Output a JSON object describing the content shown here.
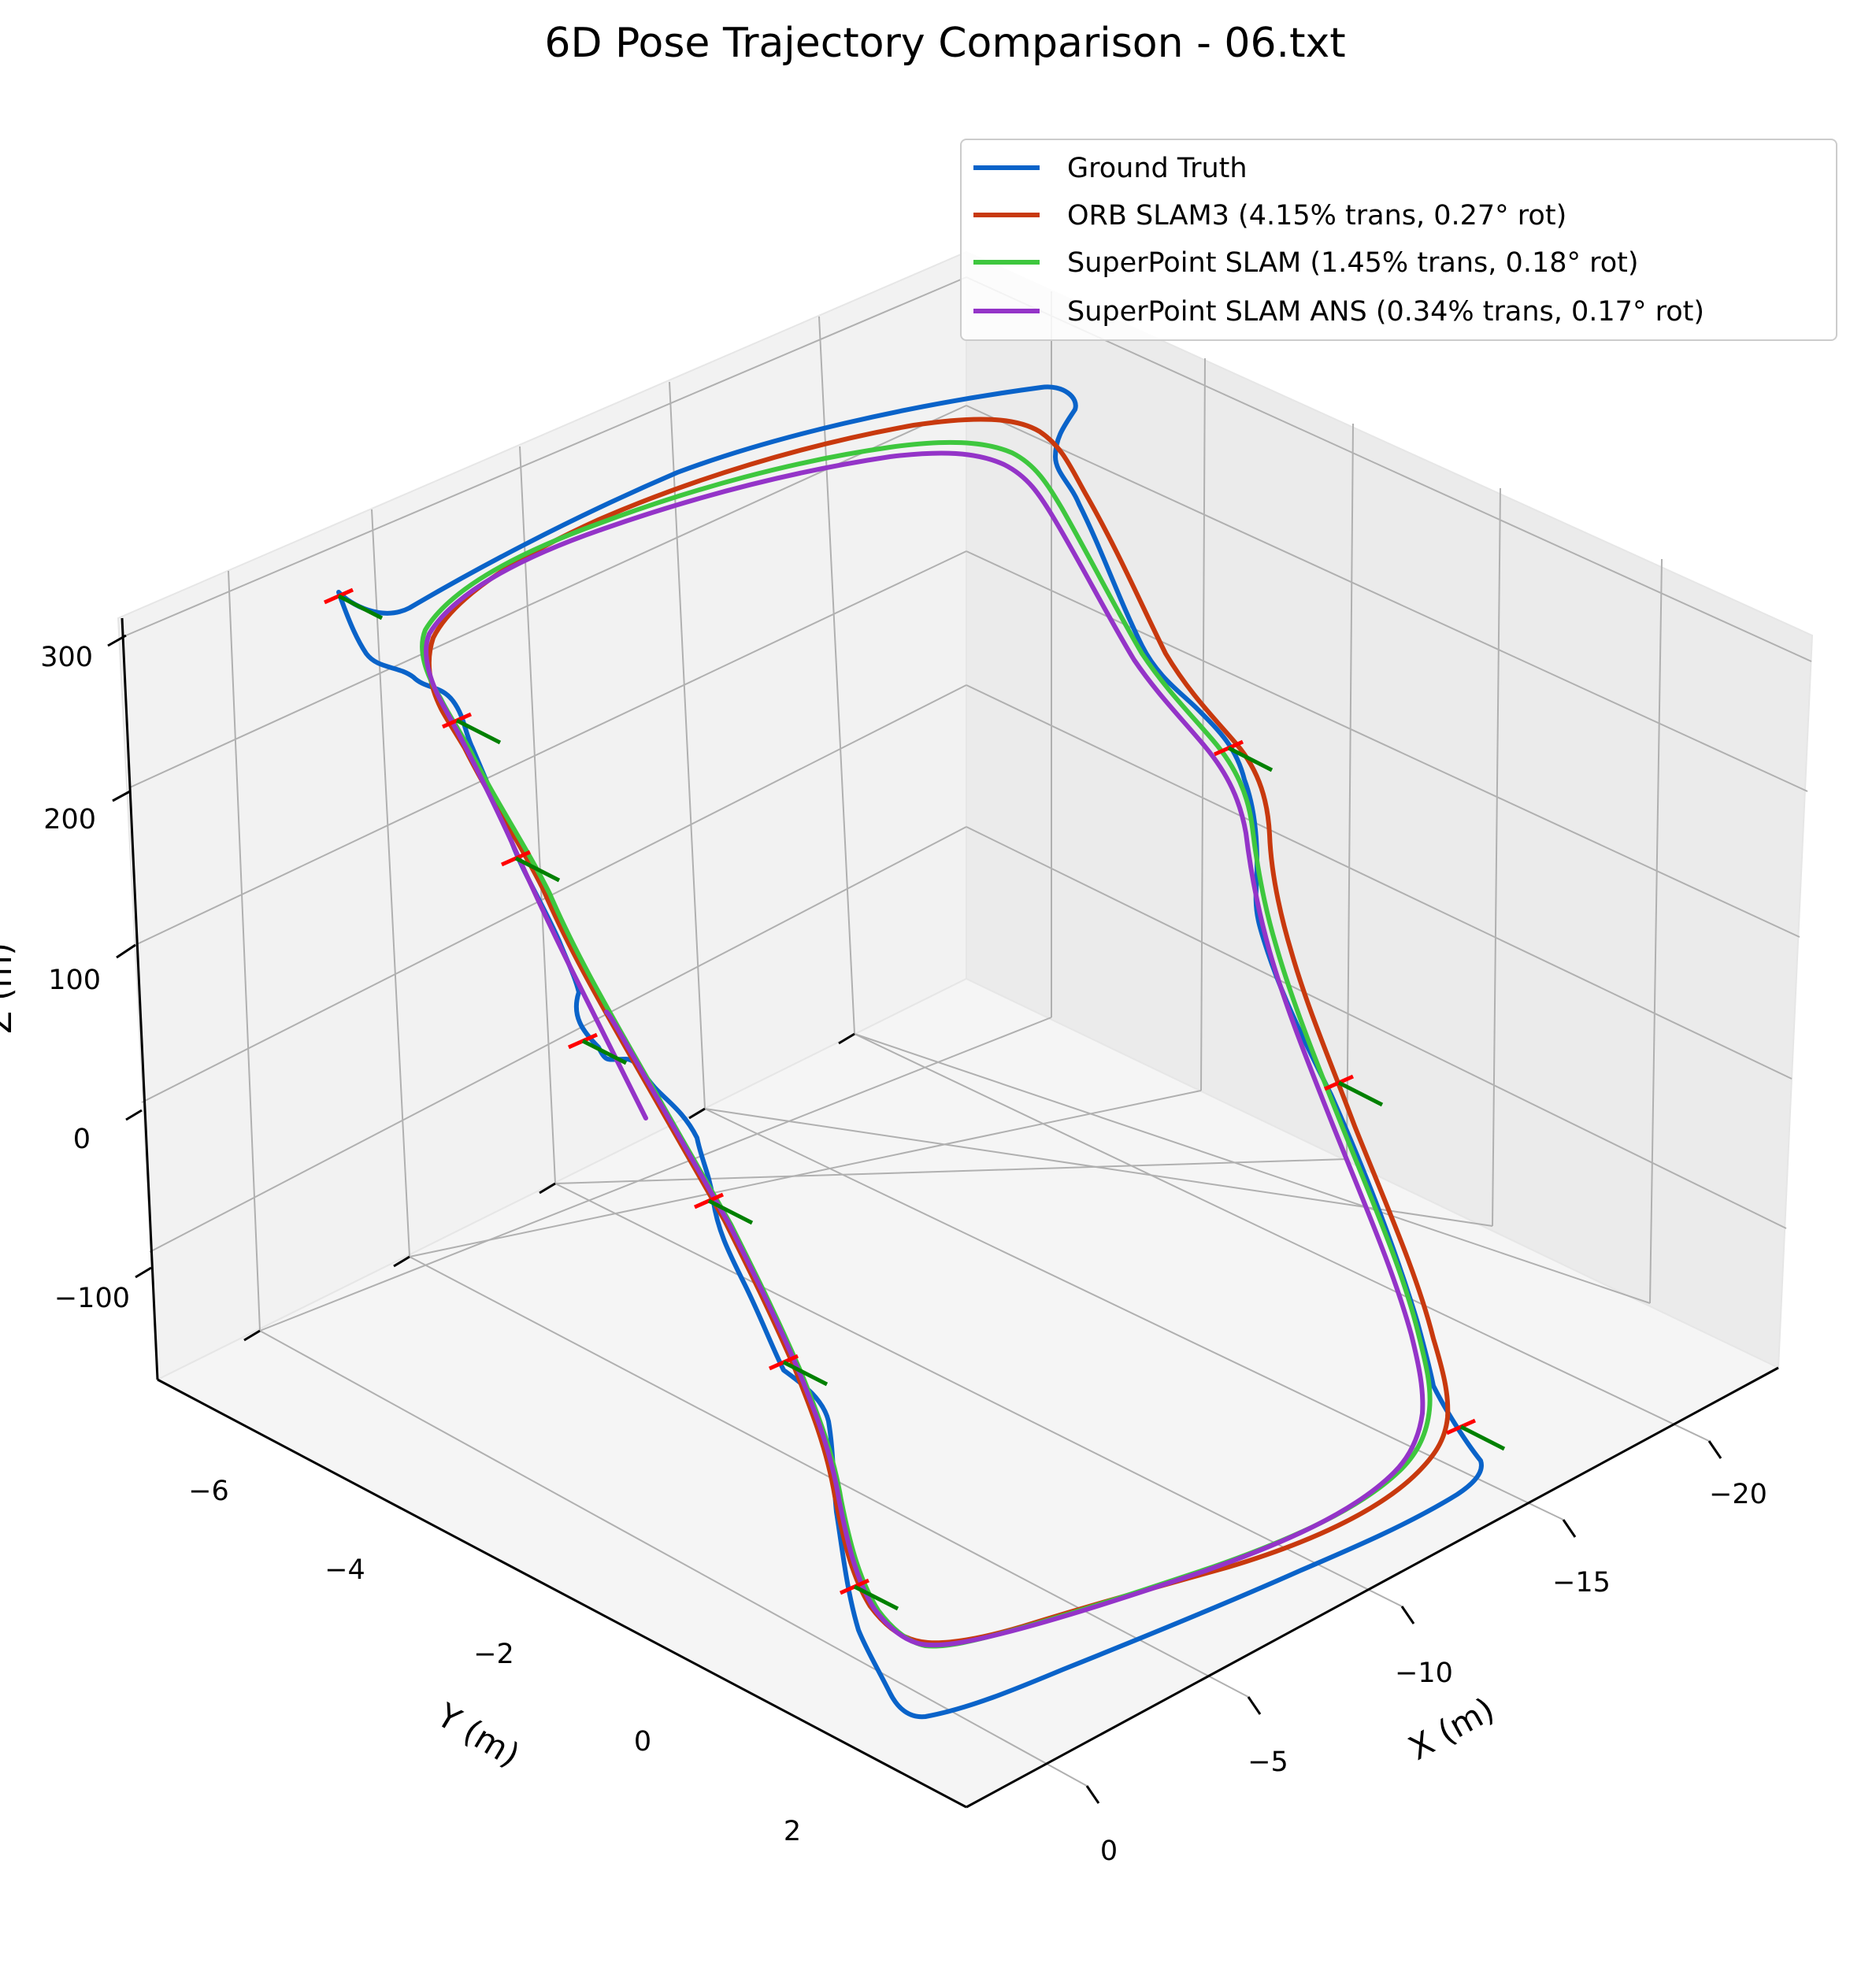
{
  "chart_data": {
    "type": "line",
    "projection": "3d",
    "title": "6D Pose Trajectory Comparison - 06.txt",
    "xlabel": "X (m)",
    "ylabel": "Y (m)",
    "zlabel": "Z (m)",
    "xlim": [
      -24,
      2
    ],
    "ylim": [
      -7.5,
      3.5
    ],
    "zlim": [
      -150,
      320
    ],
    "x_ticks": [
      "0",
      "−5",
      "−10",
      "−15",
      "−20"
    ],
    "y_ticks": [
      "−6",
      "−4",
      "−2",
      "0",
      "2"
    ],
    "z_ticks": [
      "−100",
      "0",
      "100",
      "200",
      "300"
    ],
    "grid": true,
    "legend_position": "top-right",
    "series": [
      {
        "name": "Ground Truth",
        "color": "#0a63c9"
      },
      {
        "name": "ORB SLAM3 (4.15% trans, 0.27° rot)",
        "color": "#c8390e"
      },
      {
        "name": "SuperPoint SLAM (1.45% trans, 0.18° rot)",
        "color": "#3ec73e"
      },
      {
        "name": "SuperPoint SLAM ANS (0.34% trans, 0.17° rot)",
        "color": "#9434c8"
      }
    ],
    "pose_axes": {
      "red": "#ff0000",
      "green": "#008000",
      "count": 10
    }
  }
}
